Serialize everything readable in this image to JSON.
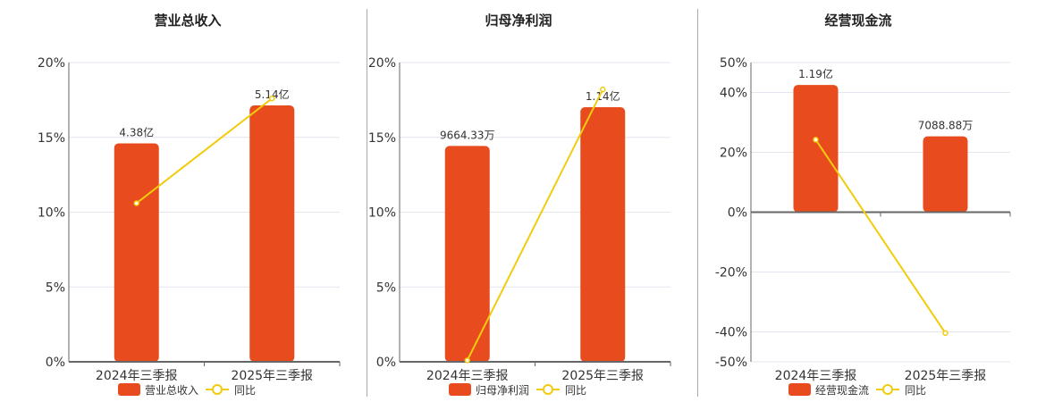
{
  "colors": {
    "bar": "#e84c1e",
    "line": "#f2cc0c",
    "grid": "#e3e6ef",
    "axis": "#666666",
    "text": "#333333"
  },
  "chart_data": [
    {
      "type": "bar+line",
      "title": "营业总收入",
      "categories": [
        "2024年三季报",
        "2025年三季报"
      ],
      "bar_series": {
        "name": "营业总收入",
        "values": [
          4.38,
          5.14
        ],
        "unit": "亿",
        "labels": [
          "4.38亿",
          "5.14亿"
        ]
      },
      "line_series": {
        "name": "同比",
        "values": [
          10.6,
          17.6
        ],
        "unit": "%"
      },
      "y_ticks": [
        "20%",
        "15%",
        "10%",
        "5%",
        "0%"
      ],
      "ylim": [
        0,
        20
      ],
      "bar_scale_max": 6.0,
      "grid": true,
      "legend": "bottom"
    },
    {
      "type": "bar+line",
      "title": "归母净利润",
      "categories": [
        "2024年三季报",
        "2025年三季报"
      ],
      "bar_series": {
        "name": "归母净利润",
        "values": [
          0.966433,
          1.14
        ],
        "unit": "亿",
        "labels": [
          "9664.33万",
          "1.14亿"
        ]
      },
      "line_series": {
        "name": "同比",
        "values": [
          0.1,
          18.2
        ],
        "unit": "%"
      },
      "y_ticks": [
        "20%",
        "15%",
        "10%",
        "5%",
        "0%"
      ],
      "ylim": [
        0,
        20
      ],
      "bar_scale_max": 1.34,
      "grid": true,
      "legend": "bottom"
    },
    {
      "type": "bar+line",
      "title": "经营现金流",
      "categories": [
        "2024年三季报",
        "2025年三季报"
      ],
      "bar_series": {
        "name": "经营现金流",
        "values": [
          1.19,
          0.708888
        ],
        "unit": "亿",
        "labels": [
          "1.19亿",
          "7088.88万"
        ]
      },
      "line_series": {
        "name": "同比",
        "values": [
          24.2,
          -40.4
        ],
        "unit": "%"
      },
      "y_ticks": [
        "50%",
        "40%",
        "20%",
        "0%",
        "-20%",
        "-40%",
        "-50%"
      ],
      "y_tick_values": [
        50,
        40,
        20,
        0,
        -20,
        -40,
        -50
      ],
      "ylim": [
        -50,
        50
      ],
      "bar_scale_max": 1.4,
      "grid": true,
      "legend": "bottom"
    }
  ]
}
